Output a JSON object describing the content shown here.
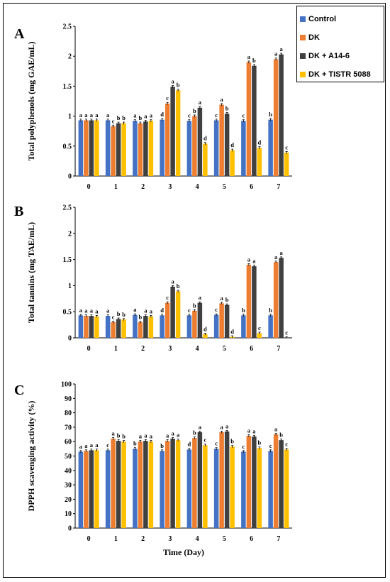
{
  "legend": {
    "items": [
      {
        "name": "Control",
        "color": "#4472C4"
      },
      {
        "name": "DK",
        "color": "#ED7D31"
      },
      {
        "name": "DK + A14-6",
        "color": "#404040"
      },
      {
        "name": "DK + TISTR 5088",
        "color": "#FFC000"
      }
    ]
  },
  "chart_data": [
    {
      "type": "bar",
      "panel_label": "A",
      "ylabel": "Total polyphenols (mg GAE/mL)",
      "xlabel": "",
      "categories": [
        "0",
        "1",
        "2",
        "3",
        "4",
        "5",
        "6",
        "7"
      ],
      "ylim": [
        0,
        2.5
      ],
      "yticks": [
        "0",
        "0.5",
        "1",
        "1.5",
        "2",
        "2.5"
      ],
      "series": [
        {
          "name": "Control",
          "values": [
            0.93,
            0.93,
            0.92,
            0.94,
            0.92,
            0.93,
            0.92,
            0.94
          ],
          "letters": [
            "a",
            "a",
            "a",
            "d",
            "c",
            "c",
            "c",
            "b"
          ]
        },
        {
          "name": "DK",
          "values": [
            0.93,
            0.83,
            0.88,
            1.21,
            1.0,
            1.19,
            1.9,
            1.95
          ],
          "letters": [
            "a",
            "c",
            "b",
            "c",
            "b",
            "a",
            "a",
            "a"
          ]
        },
        {
          "name": "DK + A14-6",
          "values": [
            0.93,
            0.88,
            0.91,
            1.49,
            1.14,
            1.04,
            1.84,
            2.03
          ],
          "letters": [
            "a",
            "b",
            "a",
            "a",
            "a",
            "b",
            "b",
            "a"
          ]
        },
        {
          "name": "DK + TISTR 5088",
          "values": [
            0.93,
            0.88,
            0.92,
            1.43,
            0.54,
            0.43,
            0.47,
            0.39
          ],
          "letters": [
            "a",
            "b",
            "a",
            "b",
            "d",
            "d",
            "d",
            "c"
          ]
        }
      ]
    },
    {
      "type": "bar",
      "panel_label": "B",
      "ylabel": "Total tannins (mg TAE/mL)",
      "xlabel": "",
      "categories": [
        "0",
        "1",
        "2",
        "3",
        "4",
        "5",
        "6",
        "7"
      ],
      "ylim": [
        0,
        2.5
      ],
      "yticks": [
        "0",
        "0.5",
        "1",
        "1.5",
        "2",
        "2.5"
      ],
      "series": [
        {
          "name": "Control",
          "values": [
            0.43,
            0.42,
            0.44,
            0.43,
            0.43,
            0.44,
            0.43,
            0.43
          ],
          "letters": [
            "a",
            "a",
            "a",
            "d",
            "c",
            "c",
            "b",
            "b"
          ]
        },
        {
          "name": "DK",
          "values": [
            0.42,
            0.3,
            0.3,
            0.67,
            0.52,
            0.66,
            1.4,
            1.45
          ],
          "letters": [
            "a",
            "c",
            "b",
            "c",
            "b",
            "a",
            "a",
            "a"
          ]
        },
        {
          "name": "DK + A14-6",
          "values": [
            0.42,
            0.36,
            0.42,
            0.98,
            0.67,
            0.63,
            1.37,
            1.53
          ],
          "letters": [
            "a",
            "b",
            "a",
            "a",
            "a",
            "b",
            "a",
            "a"
          ]
        },
        {
          "name": "DK + TISTR 5088",
          "values": [
            0.41,
            0.35,
            0.41,
            0.89,
            0.07,
            0.02,
            0.09,
            0.0
          ],
          "letters": [
            "a",
            "b",
            "a",
            "b",
            "d",
            "d",
            "c",
            "c"
          ]
        }
      ]
    },
    {
      "type": "bar",
      "panel_label": "C",
      "ylabel": "DPPH scavenging activity (%)",
      "xlabel": "Time (Day)",
      "categories": [
        "0",
        "1",
        "2",
        "3",
        "4",
        "5",
        "6",
        "7"
      ],
      "ylim": [
        0,
        100
      ],
      "yticks": [
        "0",
        "10",
        "20",
        "30",
        "40",
        "50",
        "60",
        "70",
        "80",
        "90",
        "100"
      ],
      "series": [
        {
          "name": "Control",
          "values": [
            53,
            54,
            55,
            53.5,
            54.5,
            55,
            53,
            53.5
          ],
          "letters": [
            "a",
            "c",
            "b",
            "b",
            "d",
            "c",
            "c",
            "c"
          ]
        },
        {
          "name": "DK",
          "values": [
            53.5,
            62,
            60,
            60.5,
            62.5,
            66.5,
            64,
            65
          ],
          "letters": [
            "a",
            "a",
            "a",
            "a",
            "b",
            "a",
            "a",
            "a"
          ]
        },
        {
          "name": "DK + A14-6",
          "values": [
            54,
            60.5,
            60.5,
            62,
            66.5,
            67,
            63.5,
            61
          ],
          "letters": [
            "a",
            "b",
            "a",
            "a",
            "a",
            "a",
            "a",
            "b"
          ]
        },
        {
          "name": "DK + TISTR 5088",
          "values": [
            54,
            60,
            60,
            61,
            57.5,
            56.5,
            55.5,
            54.5
          ],
          "letters": [
            "a",
            "b",
            "a",
            "a",
            "c",
            "b",
            "b",
            "c"
          ]
        }
      ]
    }
  ]
}
